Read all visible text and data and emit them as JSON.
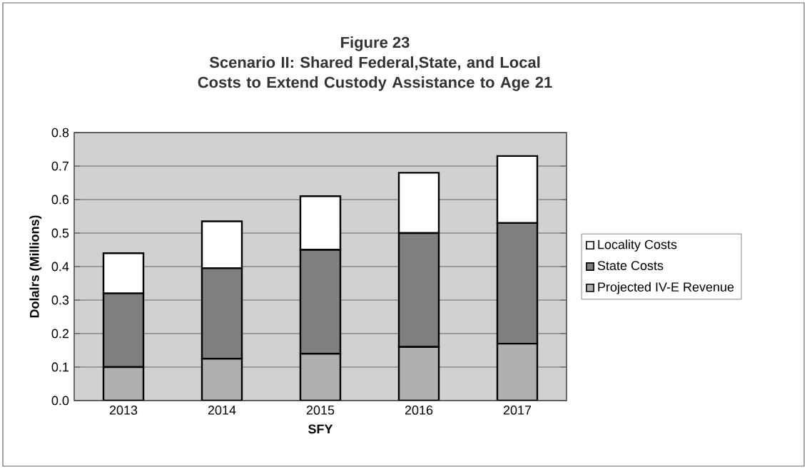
{
  "chart_data": {
    "type": "bar",
    "title": "Figure 23",
    "subtitle": "Scenario II: Shared Federal,State, and Local Costs to Extend Custody Assistance to Age 21",
    "xlabel": "SFY",
    "ylabel": "Dolalrs (Millions)",
    "categories": [
      "2013",
      "2014",
      "2015",
      "2016",
      "2017"
    ],
    "stacked": true,
    "series": [
      {
        "name": "Projected IV-E Revenue",
        "color": "#b0b0b0",
        "values": [
          0.1,
          0.125,
          0.14,
          0.16,
          0.17
        ]
      },
      {
        "name": "State Costs",
        "color": "#7f7f7f",
        "values": [
          0.22,
          0.27,
          0.31,
          0.34,
          0.36
        ]
      },
      {
        "name": "Locality Costs",
        "color": "#ffffff",
        "values": [
          0.12,
          0.14,
          0.16,
          0.18,
          0.2
        ]
      }
    ],
    "ylim": [
      0,
      0.8
    ],
    "yticks": [
      {
        "value": 0,
        "label": "0.0"
      },
      0.1,
      0.2,
      0.3,
      0.4,
      0.5,
      0.6,
      0.7,
      0.8
    ],
    "grid": "y",
    "legend": "right"
  }
}
